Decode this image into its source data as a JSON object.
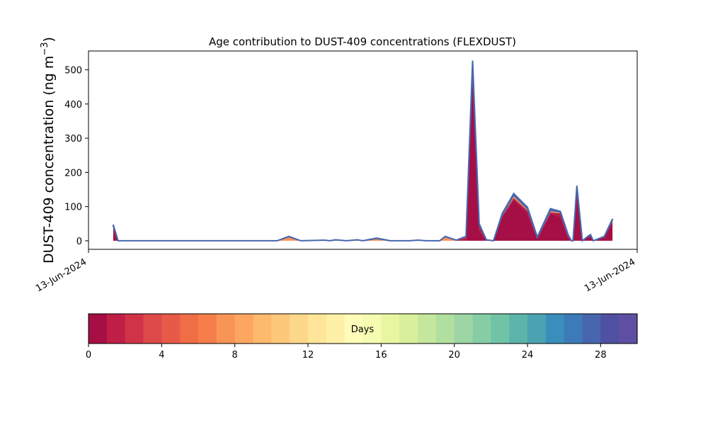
{
  "chart_data": {
    "type": "area",
    "title": "Age contribution to DUST-409 concentrations (FLEXDUST)",
    "ylabel_main": "DUST-409 concentration (ng m",
    "ylabel_sup": "−3",
    "ylabel_close": ")",
    "xlabel": "",
    "xtick_labels": [
      "13-Jun-2024",
      "13-Jun-2024"
    ],
    "ylim": [
      -25,
      555
    ],
    "yticks": [
      0,
      100,
      200,
      300,
      400,
      500
    ],
    "grid": false,
    "x": [
      0.045,
      0.054,
      0.344,
      0.365,
      0.387,
      0.43,
      0.44,
      0.45,
      0.47,
      0.49,
      0.5,
      0.525,
      0.55,
      0.57,
      0.585,
      0.6,
      0.615,
      0.625,
      0.63,
      0.64,
      0.65,
      0.67,
      0.688,
      0.7,
      0.712,
      0.725,
      0.738,
      0.754,
      0.775,
      0.8,
      0.818,
      0.842,
      0.86,
      0.874,
      0.88,
      0.883,
      0.89,
      0.9,
      0.91,
      0.915,
      0.92,
      0.94,
      0.955
    ],
    "series": [
      {
        "values": [
          42,
          0,
          0,
          0,
          0,
          0,
          0,
          0,
          0,
          0,
          0,
          0,
          0,
          0,
          0,
          0,
          0,
          0,
          0,
          0,
          0,
          0,
          0,
          470,
          30,
          2,
          0,
          70,
          120,
          80,
          5,
          80,
          70,
          10,
          0,
          0,
          140,
          0,
          10,
          15,
          0,
          10,
          55
        ]
      },
      {
        "values": [
          0,
          0,
          0,
          0,
          0,
          0,
          0,
          0,
          0,
          0,
          0,
          0,
          0,
          0,
          0,
          0,
          0,
          0,
          0,
          0,
          0,
          0,
          10,
          40,
          15,
          1,
          0,
          3,
          5,
          8,
          3,
          3,
          10,
          5,
          0,
          0,
          10,
          0,
          0,
          0,
          0,
          0,
          5
        ]
      },
      {
        "values": [
          2,
          0,
          0,
          12,
          0,
          2,
          0,
          3,
          0,
          3,
          0,
          7,
          0,
          0,
          0,
          2,
          0,
          0,
          0,
          0,
          12,
          2,
          3,
          5,
          3,
          0,
          0,
          4,
          8,
          6,
          2,
          6,
          4,
          2,
          0,
          0,
          6,
          0,
          2,
          2,
          0,
          2,
          2
        ]
      },
      {
        "values": [
          3,
          0,
          0,
          1,
          0,
          0,
          0,
          0,
          0,
          0,
          0,
          1,
          0,
          0,
          0,
          0,
          0,
          0,
          0,
          0,
          1,
          0,
          0,
          12,
          2,
          0,
          0,
          3,
          5,
          4,
          1,
          5,
          2,
          1,
          0,
          0,
          5,
          0,
          1,
          1,
          0,
          1,
          2
        ]
      }
    ],
    "colorbar": {
      "label": "Days",
      "min": 0,
      "max": 30,
      "ticks": [
        0,
        4,
        8,
        12,
        16,
        20,
        24,
        28
      ],
      "colors": [
        "#a50f45",
        "#bf1f46",
        "#d03347",
        "#dc4a4a",
        "#e65a47",
        "#f06d45",
        "#f67e4b",
        "#f99457",
        "#fca660",
        "#fdb96c",
        "#fec87a",
        "#fed88a",
        "#fee59a",
        "#fff0a8",
        "#fffbb8",
        "#f5fbb1",
        "#e8f6a2",
        "#d8ef9b",
        "#c4e79d",
        "#b1df9f",
        "#9dd6a4",
        "#86cda5",
        "#71c3a5",
        "#5cb4aa",
        "#4ba3b1",
        "#3a8ebb",
        "#3d7bb8",
        "#4866ae",
        "#5050a2",
        "#5e4fa2"
      ]
    },
    "series_colors": [
      "#a50f45",
      "#b01c45",
      "#f99457",
      "#4866ae"
    ]
  }
}
